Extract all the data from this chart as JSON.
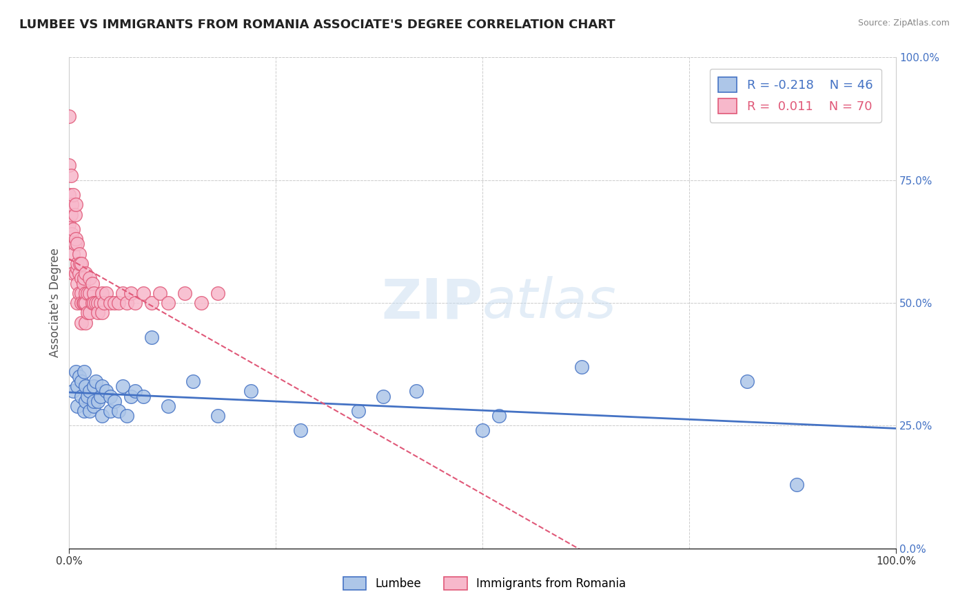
{
  "title": "LUMBEE VS IMMIGRANTS FROM ROMANIA ASSOCIATE'S DEGREE CORRELATION CHART",
  "source": "Source: ZipAtlas.com",
  "ylabel": "Associate's Degree",
  "watermark": "ZIPatlas",
  "legend_lumbee": "Lumbee",
  "legend_romania": "Immigrants from Romania",
  "r_lumbee": -0.218,
  "n_lumbee": 46,
  "r_romania": 0.011,
  "n_romania": 70,
  "xmin": 0.0,
  "xmax": 1.0,
  "ymin": 0.0,
  "ymax": 1.0,
  "color_lumbee": "#adc6e8",
  "color_romania": "#f7b8cb",
  "color_lumbee_line": "#4472c4",
  "color_romania_line": "#e05878",
  "lumbee_x": [
    0.005,
    0.008,
    0.01,
    0.01,
    0.012,
    0.015,
    0.015,
    0.018,
    0.018,
    0.02,
    0.02,
    0.022,
    0.025,
    0.025,
    0.03,
    0.03,
    0.03,
    0.032,
    0.035,
    0.038,
    0.04,
    0.04,
    0.045,
    0.05,
    0.05,
    0.055,
    0.06,
    0.065,
    0.07,
    0.075,
    0.08,
    0.09,
    0.1,
    0.12,
    0.15,
    0.18,
    0.22,
    0.28,
    0.35,
    0.38,
    0.42,
    0.5,
    0.52,
    0.62,
    0.82,
    0.88
  ],
  "lumbee_y": [
    0.32,
    0.36,
    0.29,
    0.33,
    0.35,
    0.31,
    0.34,
    0.28,
    0.36,
    0.3,
    0.33,
    0.31,
    0.28,
    0.32,
    0.29,
    0.33,
    0.3,
    0.34,
    0.3,
    0.31,
    0.27,
    0.33,
    0.32,
    0.28,
    0.31,
    0.3,
    0.28,
    0.33,
    0.27,
    0.31,
    0.32,
    0.31,
    0.43,
    0.29,
    0.34,
    0.27,
    0.32,
    0.24,
    0.28,
    0.31,
    0.32,
    0.24,
    0.27,
    0.37,
    0.34,
    0.13
  ],
  "romania_x": [
    0.0,
    0.0,
    0.0,
    0.0,
    0.002,
    0.002,
    0.003,
    0.003,
    0.005,
    0.005,
    0.005,
    0.005,
    0.007,
    0.007,
    0.008,
    0.008,
    0.008,
    0.01,
    0.01,
    0.01,
    0.01,
    0.01,
    0.012,
    0.012,
    0.012,
    0.013,
    0.015,
    0.015,
    0.015,
    0.015,
    0.015,
    0.017,
    0.017,
    0.018,
    0.018,
    0.02,
    0.02,
    0.02,
    0.02,
    0.022,
    0.022,
    0.025,
    0.025,
    0.025,
    0.028,
    0.028,
    0.03,
    0.03,
    0.032,
    0.035,
    0.035,
    0.038,
    0.04,
    0.04,
    0.042,
    0.045,
    0.05,
    0.055,
    0.06,
    0.065,
    0.07,
    0.075,
    0.08,
    0.09,
    0.1,
    0.11,
    0.12,
    0.14,
    0.16,
    0.18
  ],
  "romania_y": [
    0.88,
    0.78,
    0.72,
    0.66,
    0.76,
    0.68,
    0.7,
    0.64,
    0.72,
    0.65,
    0.6,
    0.56,
    0.68,
    0.62,
    0.7,
    0.63,
    0.56,
    0.62,
    0.57,
    0.54,
    0.58,
    0.5,
    0.6,
    0.56,
    0.52,
    0.58,
    0.55,
    0.52,
    0.58,
    0.5,
    0.46,
    0.54,
    0.5,
    0.55,
    0.5,
    0.56,
    0.52,
    0.5,
    0.46,
    0.52,
    0.48,
    0.55,
    0.52,
    0.48,
    0.54,
    0.5,
    0.52,
    0.5,
    0.5,
    0.5,
    0.48,
    0.5,
    0.52,
    0.48,
    0.5,
    0.52,
    0.5,
    0.5,
    0.5,
    0.52,
    0.5,
    0.52,
    0.5,
    0.52,
    0.5,
    0.52,
    0.5,
    0.52,
    0.5,
    0.52
  ]
}
